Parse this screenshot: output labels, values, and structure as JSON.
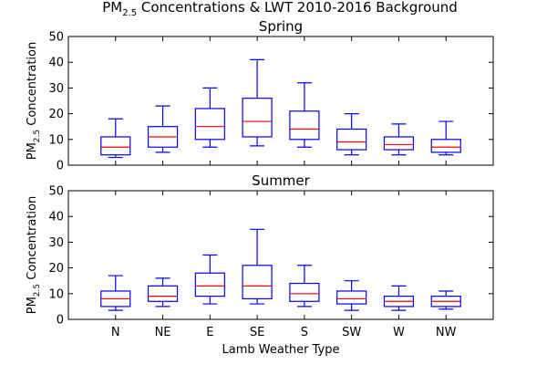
{
  "chart_data": {
    "type": "boxplot",
    "title": "PM2.5 Concentrations & LWT 2010-2016 Background",
    "title_parts": {
      "before": "PM",
      "sub": "2.5",
      "after": " Concentrations & LWT 2010-2016 Background"
    },
    "categories": [
      "N",
      "NE",
      "E",
      "SE",
      "S",
      "SW",
      "W",
      "NW"
    ],
    "xlabel": "Lamb Weather Type",
    "ylabel_parts": {
      "before": "PM",
      "sub": "2.5",
      "after": " Concentration"
    },
    "box_color": "#0000ff",
    "median_color": "#ff0000",
    "grid": false,
    "panels": [
      {
        "title": "Spring",
        "ylim": [
          0,
          50
        ],
        "yticks": [
          0,
          10,
          20,
          30,
          40,
          50
        ],
        "boxes": [
          {
            "category": "N",
            "whislo": 3,
            "q1": 4,
            "med": 7,
            "q3": 11,
            "whishi": 18
          },
          {
            "category": "NE",
            "whislo": 5,
            "q1": 7,
            "med": 11,
            "q3": 15,
            "whishi": 23
          },
          {
            "category": "E",
            "whislo": 7,
            "q1": 10,
            "med": 15,
            "q3": 22,
            "whishi": 30
          },
          {
            "category": "SE",
            "whislo": 7.5,
            "q1": 11,
            "med": 17,
            "q3": 26,
            "whishi": 41
          },
          {
            "category": "S",
            "whislo": 7,
            "q1": 10,
            "med": 14,
            "q3": 21,
            "whishi": 32
          },
          {
            "category": "SW",
            "whislo": 4,
            "q1": 6,
            "med": 9,
            "q3": 14,
            "whishi": 20
          },
          {
            "category": "W",
            "whislo": 4,
            "q1": 6,
            "med": 8,
            "q3": 11,
            "whishi": 16
          },
          {
            "category": "NW",
            "whislo": 4,
            "q1": 5,
            "med": 7,
            "q3": 10,
            "whishi": 17
          }
        ]
      },
      {
        "title": "Summer",
        "ylim": [
          0,
          50
        ],
        "yticks": [
          0,
          10,
          20,
          30,
          40,
          50
        ],
        "boxes": [
          {
            "category": "N",
            "whislo": 3.5,
            "q1": 5,
            "med": 8,
            "q3": 11,
            "whishi": 17
          },
          {
            "category": "NE",
            "whislo": 5,
            "q1": 7,
            "med": 9,
            "q3": 13,
            "whishi": 16
          },
          {
            "category": "E",
            "whislo": 6,
            "q1": 9,
            "med": 13,
            "q3": 18,
            "whishi": 25
          },
          {
            "category": "SE",
            "whislo": 6,
            "q1": 8,
            "med": 13,
            "q3": 21,
            "whishi": 35
          },
          {
            "category": "S",
            "whislo": 5,
            "q1": 7,
            "med": 10,
            "q3": 14,
            "whishi": 21
          },
          {
            "category": "SW",
            "whislo": 3.5,
            "q1": 6,
            "med": 8,
            "q3": 11,
            "whishi": 15
          },
          {
            "category": "W",
            "whislo": 3.5,
            "q1": 5,
            "med": 7,
            "q3": 9,
            "whishi": 13
          },
          {
            "category": "NW",
            "whislo": 4,
            "q1": 5,
            "med": 7,
            "q3": 9,
            "whishi": 11
          }
        ]
      }
    ]
  }
}
